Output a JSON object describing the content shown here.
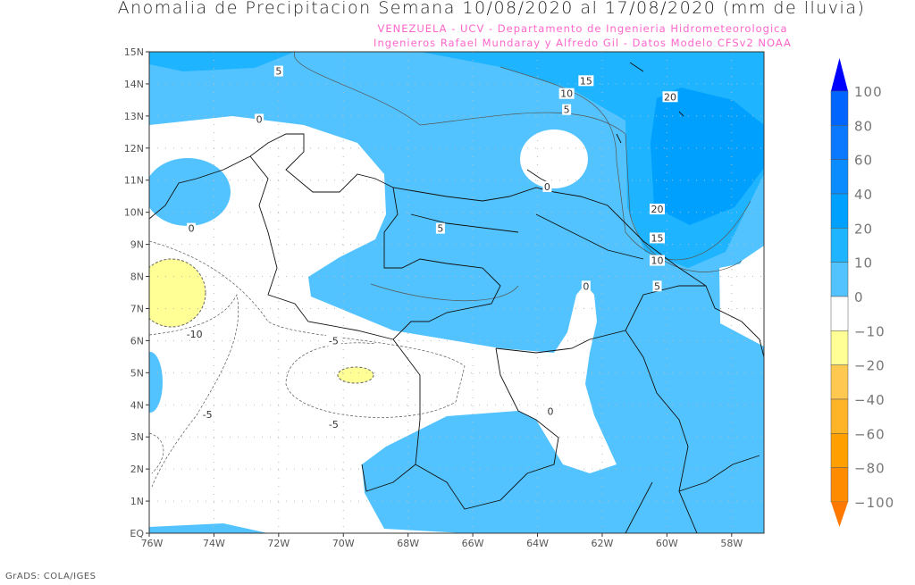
{
  "title": "Anomalia de Precipitacion Semana 10/08/2020 al 17/08/2020 (mm de lluvia)",
  "subtitle1": "VENEZUELA - UCV - Departamento de Ingenieria Hidrometeorologica",
  "subtitle2": "Ingenieros Rafael Mundaray y Alfredo Gil - Datos Modelo CFSv2 NOAA",
  "footer": "GrADS: COLA/IGES",
  "map": {
    "lon_range": [
      -76,
      -57
    ],
    "lat_range": [
      0,
      15
    ],
    "x_ticks": [
      "76W",
      "74W",
      "72W",
      "70W",
      "68W",
      "66W",
      "64W",
      "62W",
      "60W",
      "58W"
    ],
    "y_ticks": [
      "EQ",
      "1N",
      "2N",
      "3N",
      "4N",
      "5N",
      "6N",
      "7N",
      "8N",
      "9N",
      "10N",
      "11N",
      "12N",
      "13N",
      "14N",
      "15N"
    ],
    "contour_labels": [
      {
        "text": "5",
        "lon": -72.0,
        "lat": 14.4
      },
      {
        "text": "0",
        "lon": -72.6,
        "lat": 12.9
      },
      {
        "text": "15",
        "lon": -62.5,
        "lat": 14.1
      },
      {
        "text": "10",
        "lon": -63.1,
        "lat": 13.7
      },
      {
        "text": "5",
        "lon": -63.1,
        "lat": 13.2
      },
      {
        "text": "20",
        "lon": -59.9,
        "lat": 13.6
      },
      {
        "text": "0",
        "lon": -63.7,
        "lat": 10.8
      },
      {
        "text": "20",
        "lon": -60.3,
        "lat": 10.1
      },
      {
        "text": "15",
        "lon": -60.3,
        "lat": 9.2
      },
      {
        "text": "10",
        "lon": -60.3,
        "lat": 8.5
      },
      {
        "text": "5",
        "lon": -60.3,
        "lat": 7.7
      },
      {
        "text": "0",
        "lon": -62.5,
        "lat": 7.7
      },
      {
        "text": "5",
        "lon": -67.0,
        "lat": 9.5
      },
      {
        "text": "0",
        "lon": -74.7,
        "lat": 9.5
      },
      {
        "text": "-10",
        "lon": -74.6,
        "lat": 6.2
      },
      {
        "text": "-5",
        "lon": -70.3,
        "lat": 6.0
      },
      {
        "text": "-5",
        "lon": -74.2,
        "lat": 3.7
      },
      {
        "text": "-5",
        "lon": -70.3,
        "lat": 3.4
      },
      {
        "text": "0",
        "lon": -63.6,
        "lat": 3.8
      }
    ]
  },
  "colorbar": {
    "labels": [
      "100",
      "80",
      "60",
      "40",
      "20",
      "10",
      "0",
      "-10",
      "-20",
      "-40",
      "-60",
      "-80",
      "-100"
    ],
    "colors": [
      "#0064ff",
      "#0a78ff",
      "#0a8cff",
      "#00a0ff",
      "#1eb4ff",
      "#52c3ff",
      "#ffffff",
      "#ffff96",
      "#ffc850",
      "#ffb428",
      "#ffa000",
      "#ff8c00"
    ],
    "top_arrow_color": "#0000ff",
    "bottom_arrow_color": "#ff7800"
  }
}
